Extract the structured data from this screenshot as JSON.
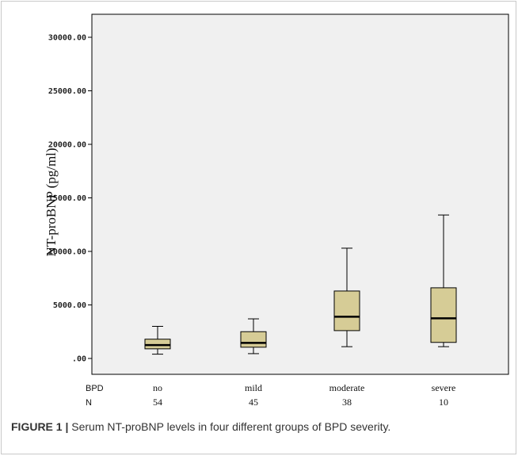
{
  "caption": {
    "label": "FIGURE 1 |",
    "text": " Serum NT-proBNP levels in four different groups of BPD severity."
  },
  "chart_data": {
    "type": "box",
    "title": "",
    "xlabel": "",
    "ylabel": "NT-proBNP (pg/ml)",
    "ylim": [
      -1800,
      32500
    ],
    "yticks": [
      0,
      5000,
      10000,
      15000,
      20000,
      25000,
      30000
    ],
    "ytick_labels": [
      ".00",
      "5000.00",
      "10000.00",
      "15000.00",
      "20000.00",
      "25000.00",
      "30000.00"
    ],
    "grid": false,
    "row_labels": {
      "category": "BPD",
      "count": "N"
    },
    "categories": [
      "no",
      "mild",
      "moderate",
      "severe"
    ],
    "counts": [
      "54",
      "45",
      "38",
      "10"
    ],
    "boxes": [
      {
        "category": "no",
        "whisker_low": 400,
        "q1": 900,
        "median": 1250,
        "q3": 1800,
        "whisker_high": 3000
      },
      {
        "category": "mild",
        "whisker_low": 450,
        "q1": 1050,
        "median": 1450,
        "q3": 2500,
        "whisker_high": 3700
      },
      {
        "category": "moderate",
        "whisker_low": 1100,
        "q1": 2600,
        "median": 3900,
        "q3": 6300,
        "whisker_high": 10300
      },
      {
        "category": "severe",
        "whisker_low": 1100,
        "q1": 1500,
        "median": 3750,
        "q3": 6600,
        "whisker_high": 13400
      }
    ],
    "colors": {
      "box_fill": "#d6cc96",
      "plot_background": "#f0f0f0",
      "line": "#000000"
    }
  }
}
